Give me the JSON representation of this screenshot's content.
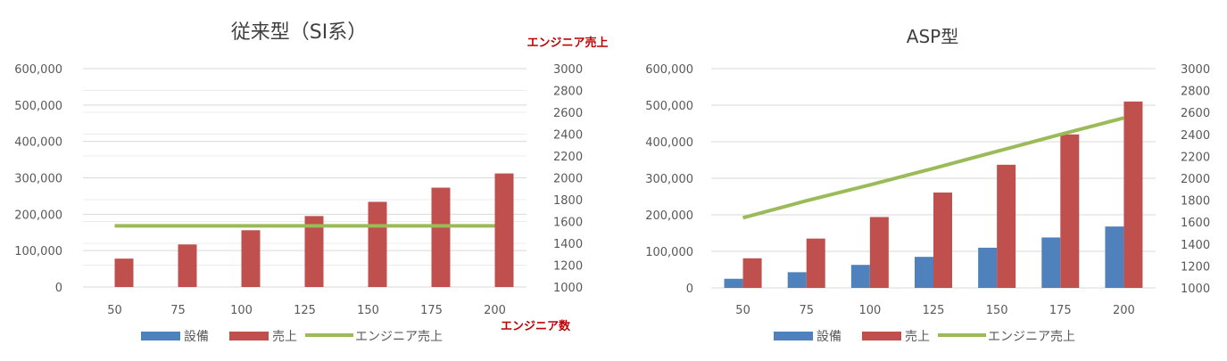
{
  "colors": {
    "equipment": "#4f81bd",
    "sales": "#c0504d",
    "engineer_sales": "#9bbb59",
    "secondary_label": "#c00000",
    "axis_text": "#595959",
    "title_text": "#404040",
    "grid": "#d9d9d9"
  },
  "chart_data": [
    {
      "type": "bar",
      "title": "従来型（SI系）",
      "categories": [
        "50",
        "75",
        "100",
        "125",
        "150",
        "175",
        "200"
      ],
      "series": [
        {
          "name": "設備",
          "axis": "left",
          "values": [
            0,
            0,
            0,
            0,
            0,
            0,
            0
          ]
        },
        {
          "name": "売上",
          "axis": "left",
          "values": [
            78000,
            117000,
            156000,
            195000,
            234000,
            273000,
            312000
          ]
        },
        {
          "name": "エンジニア売上",
          "axis": "right",
          "kind": "line",
          "values": [
            1560,
            1560,
            1560,
            1560,
            1560,
            1560,
            1560
          ]
        }
      ],
      "y_left": {
        "min": 0,
        "max": 600000,
        "ticks": [
          "0",
          "100,000",
          "200,000",
          "300,000",
          "400,000",
          "500,000",
          "600,000"
        ]
      },
      "y_right": {
        "min": 1000,
        "max": 3000,
        "ticks": [
          "1000",
          "1200",
          "1400",
          "1600",
          "1800",
          "2000",
          "2200",
          "2400",
          "2600",
          "2800",
          "3000"
        ]
      },
      "y_right_label": "エンジニア売上",
      "xlabel": "エンジニア数",
      "legend": [
        "設備",
        "売上",
        "エンジニア売上"
      ],
      "legend_position": "bottom",
      "grid": true
    },
    {
      "type": "bar",
      "title": "ASP型",
      "categories": [
        "50",
        "75",
        "100",
        "125",
        "150",
        "175",
        "200"
      ],
      "series": [
        {
          "name": "設備",
          "axis": "left",
          "values": [
            25000,
            43000,
            63000,
            85000,
            110000,
            138000,
            168000
          ]
        },
        {
          "name": "売上",
          "axis": "left",
          "values": [
            81000,
            135000,
            194000,
            261000,
            337000,
            420000,
            510000
          ]
        },
        {
          "name": "エンジニア売上",
          "axis": "right",
          "kind": "line",
          "values": [
            1640,
            1795,
            1940,
            2090,
            2245,
            2400,
            2550
          ]
        }
      ],
      "y_left": {
        "min": 0,
        "max": 600000,
        "ticks": [
          "0",
          "100,000",
          "200,000",
          "300,000",
          "400,000",
          "500,000",
          "600,000"
        ]
      },
      "y_right": {
        "min": 1000,
        "max": 3000,
        "ticks": [
          "1000",
          "1200",
          "1400",
          "1600",
          "1800",
          "2000",
          "2200",
          "2400",
          "2600",
          "2800",
          "3000"
        ]
      },
      "legend": [
        "設備",
        "売上",
        "エンジニア売上"
      ],
      "legend_position": "bottom",
      "grid": true
    }
  ]
}
